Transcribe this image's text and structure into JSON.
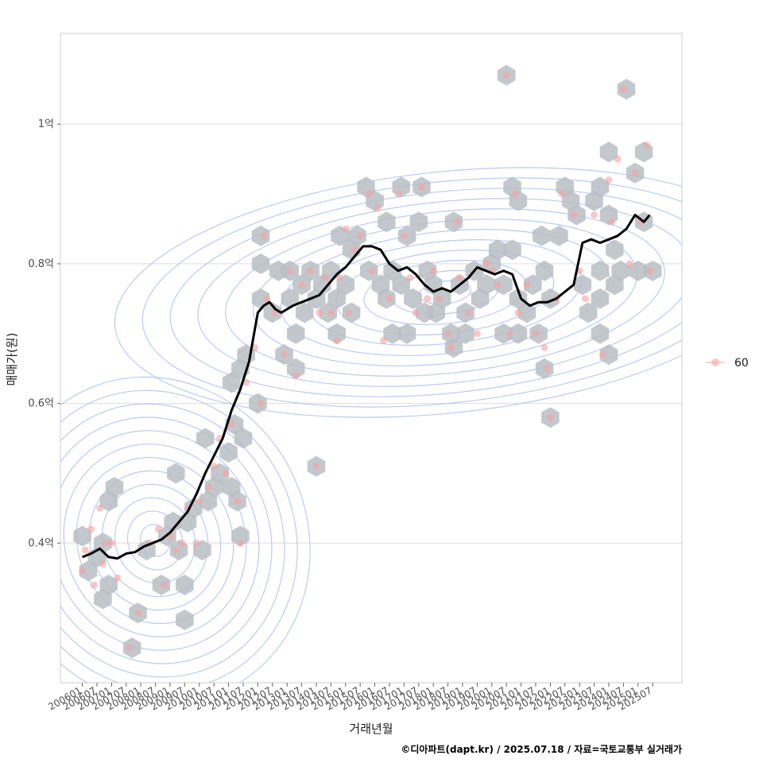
{
  "chart_data": {
    "type": "scatter",
    "title": "",
    "xlabel": "거래년월",
    "ylabel": "매매가(원)",
    "ylim": [
      0.2,
      1.13
    ],
    "yticks": [
      {
        "value": 0.4,
        "label": "0.4억"
      },
      {
        "value": 0.6,
        "label": "0.6억"
      },
      {
        "value": 0.8,
        "label": "0.8억"
      },
      {
        "value": 1.0,
        "label": "1억"
      }
    ],
    "xlim": [
      2005.25,
      2026.5
    ],
    "xticks": [
      "200601",
      "200607",
      "200701",
      "200707",
      "200801",
      "200807",
      "200901",
      "200907",
      "201001",
      "201007",
      "201101",
      "201107",
      "201201",
      "201207",
      "201301",
      "201307",
      "201401",
      "201407",
      "201501",
      "201507",
      "201601",
      "201607",
      "201701",
      "201707",
      "201801",
      "201807",
      "201901",
      "201907",
      "202001",
      "202007",
      "202101",
      "202107",
      "202201",
      "202207",
      "202301",
      "202307",
      "202401",
      "202407",
      "202501",
      "202507"
    ],
    "legend": {
      "title": "",
      "entries": [
        {
          "label": "60",
          "color": "#f4a3a3"
        }
      ],
      "position": "right"
    },
    "colors": {
      "hex": "#b9bec4",
      "point": "#f4a3a3",
      "contour": "#aabdf2",
      "trend": "#000000",
      "grid": "#dddddd",
      "frame": "#cccccc"
    },
    "trend_line": {
      "name": "moving average",
      "x": [
        2006.0,
        2006.3,
        2006.6,
        2006.9,
        2007.2,
        2007.5,
        2007.8,
        2008.1,
        2008.4,
        2008.7,
        2009.0,
        2009.3,
        2009.6,
        2009.9,
        2010.2,
        2010.5,
        2010.8,
        2011.1,
        2011.4,
        2011.7,
        2012.0,
        2012.2,
        2012.4,
        2012.6,
        2012.8,
        2013.0,
        2013.2,
        2013.5,
        2013.8,
        2014.1,
        2014.4,
        2014.7,
        2015.0,
        2015.3,
        2015.6,
        2015.9,
        2016.2,
        2016.5,
        2016.8,
        2017.1,
        2017.4,
        2017.7,
        2018.0,
        2018.3,
        2018.6,
        2018.9,
        2019.2,
        2019.5,
        2019.8,
        2020.1,
        2020.4,
        2020.7,
        2021.0,
        2021.3,
        2021.6,
        2021.9,
        2022.2,
        2022.5,
        2022.8,
        2023.1,
        2023.4,
        2023.7,
        2024.0,
        2024.3,
        2024.6,
        2024.9,
        2025.2,
        2025.4
      ],
      "y": [
        0.38,
        0.385,
        0.392,
        0.38,
        0.378,
        0.385,
        0.387,
        0.395,
        0.4,
        0.405,
        0.415,
        0.43,
        0.445,
        0.47,
        0.5,
        0.525,
        0.55,
        0.59,
        0.62,
        0.66,
        0.73,
        0.74,
        0.745,
        0.735,
        0.73,
        0.735,
        0.74,
        0.745,
        0.75,
        0.755,
        0.77,
        0.785,
        0.795,
        0.81,
        0.825,
        0.825,
        0.82,
        0.8,
        0.79,
        0.795,
        0.785,
        0.77,
        0.76,
        0.765,
        0.76,
        0.77,
        0.78,
        0.795,
        0.79,
        0.785,
        0.79,
        0.785,
        0.75,
        0.74,
        0.745,
        0.745,
        0.75,
        0.76,
        0.77,
        0.83,
        0.835,
        0.83,
        0.835,
        0.84,
        0.85,
        0.87,
        0.86,
        0.87
      ]
    },
    "hexbins": [
      {
        "x": 2006.0,
        "y": 0.41
      },
      {
        "x": 2006.2,
        "y": 0.36
      },
      {
        "x": 2006.5,
        "y": 0.38
      },
      {
        "x": 2006.7,
        "y": 0.4
      },
      {
        "x": 2006.9,
        "y": 0.34
      },
      {
        "x": 2006.7,
        "y": 0.32
      },
      {
        "x": 2006.9,
        "y": 0.46
      },
      {
        "x": 2007.1,
        "y": 0.48
      },
      {
        "x": 2007.7,
        "y": 0.25
      },
      {
        "x": 2007.9,
        "y": 0.3
      },
      {
        "x": 2008.2,
        "y": 0.39
      },
      {
        "x": 2008.7,
        "y": 0.34
      },
      {
        "x": 2008.9,
        "y": 0.41
      },
      {
        "x": 2009.1,
        "y": 0.43
      },
      {
        "x": 2009.3,
        "y": 0.39
      },
      {
        "x": 2009.5,
        "y": 0.34
      },
      {
        "x": 2009.6,
        "y": 0.43
      },
      {
        "x": 2009.8,
        "y": 0.45
      },
      {
        "x": 2009.5,
        "y": 0.29
      },
      {
        "x": 2009.2,
        "y": 0.5
      },
      {
        "x": 2010.1,
        "y": 0.39
      },
      {
        "x": 2010.3,
        "y": 0.46
      },
      {
        "x": 2010.5,
        "y": 0.48
      },
      {
        "x": 2010.2,
        "y": 0.55
      },
      {
        "x": 2010.7,
        "y": 0.5
      },
      {
        "x": 2011.0,
        "y": 0.53
      },
      {
        "x": 2011.1,
        "y": 0.48
      },
      {
        "x": 2011.3,
        "y": 0.46
      },
      {
        "x": 2011.4,
        "y": 0.41
      },
      {
        "x": 2011.2,
        "y": 0.57
      },
      {
        "x": 2011.5,
        "y": 0.55
      },
      {
        "x": 2011.1,
        "y": 0.63
      },
      {
        "x": 2011.4,
        "y": 0.65
      },
      {
        "x": 2011.6,
        "y": 0.67
      },
      {
        "x": 2012.0,
        "y": 0.6
      },
      {
        "x": 2012.1,
        "y": 0.75
      },
      {
        "x": 2012.1,
        "y": 0.8
      },
      {
        "x": 2012.1,
        "y": 0.84
      },
      {
        "x": 2012.5,
        "y": 0.73
      },
      {
        "x": 2012.7,
        "y": 0.79
      },
      {
        "x": 2012.9,
        "y": 0.67
      },
      {
        "x": 2013.1,
        "y": 0.75
      },
      {
        "x": 2013.1,
        "y": 0.79
      },
      {
        "x": 2013.3,
        "y": 0.65
      },
      {
        "x": 2013.3,
        "y": 0.7
      },
      {
        "x": 2013.5,
        "y": 0.77
      },
      {
        "x": 2013.6,
        "y": 0.73
      },
      {
        "x": 2013.8,
        "y": 0.79
      },
      {
        "x": 2014.0,
        "y": 0.75
      },
      {
        "x": 2014.2,
        "y": 0.77
      },
      {
        "x": 2014.0,
        "y": 0.51
      },
      {
        "x": 2014.5,
        "y": 0.79
      },
      {
        "x": 2014.4,
        "y": 0.73
      },
      {
        "x": 2014.7,
        "y": 0.75
      },
      {
        "x": 2014.7,
        "y": 0.7
      },
      {
        "x": 2014.8,
        "y": 0.84
      },
      {
        "x": 2015.0,
        "y": 0.77
      },
      {
        "x": 2015.2,
        "y": 0.73
      },
      {
        "x": 2015.2,
        "y": 0.82
      },
      {
        "x": 2015.4,
        "y": 0.84
      },
      {
        "x": 2015.7,
        "y": 0.91
      },
      {
        "x": 2015.8,
        "y": 0.79
      },
      {
        "x": 2016.0,
        "y": 0.89
      },
      {
        "x": 2016.2,
        "y": 0.77
      },
      {
        "x": 2016.4,
        "y": 0.86
      },
      {
        "x": 2016.4,
        "y": 0.75
      },
      {
        "x": 2016.6,
        "y": 0.79
      },
      {
        "x": 2016.6,
        "y": 0.7
      },
      {
        "x": 2016.9,
        "y": 0.91
      },
      {
        "x": 2016.9,
        "y": 0.77
      },
      {
        "x": 2017.1,
        "y": 0.84
      },
      {
        "x": 2017.1,
        "y": 0.7
      },
      {
        "x": 2017.3,
        "y": 0.75
      },
      {
        "x": 2017.5,
        "y": 0.86
      },
      {
        "x": 2017.6,
        "y": 0.91
      },
      {
        "x": 2017.7,
        "y": 0.73
      },
      {
        "x": 2017.8,
        "y": 0.79
      },
      {
        "x": 2018.0,
        "y": 0.77
      },
      {
        "x": 2018.1,
        "y": 0.73
      },
      {
        "x": 2018.3,
        "y": 0.75
      },
      {
        "x": 2018.6,
        "y": 0.7
      },
      {
        "x": 2018.7,
        "y": 0.86
      },
      {
        "x": 2018.7,
        "y": 0.68
      },
      {
        "x": 2018.9,
        "y": 0.77
      },
      {
        "x": 2019.1,
        "y": 0.7
      },
      {
        "x": 2019.1,
        "y": 0.73
      },
      {
        "x": 2019.4,
        "y": 0.79
      },
      {
        "x": 2019.6,
        "y": 0.75
      },
      {
        "x": 2019.8,
        "y": 0.77
      },
      {
        "x": 2020.0,
        "y": 0.8
      },
      {
        "x": 2020.2,
        "y": 0.82
      },
      {
        "x": 2020.4,
        "y": 0.77
      },
      {
        "x": 2020.4,
        "y": 0.7
      },
      {
        "x": 2020.5,
        "y": 1.07
      },
      {
        "x": 2020.7,
        "y": 0.91
      },
      {
        "x": 2020.9,
        "y": 0.89
      },
      {
        "x": 2020.9,
        "y": 0.75
      },
      {
        "x": 2020.9,
        "y": 0.7
      },
      {
        "x": 2020.7,
        "y": 0.82
      },
      {
        "x": 2021.2,
        "y": 0.73
      },
      {
        "x": 2021.4,
        "y": 0.77
      },
      {
        "x": 2021.6,
        "y": 0.7
      },
      {
        "x": 2021.7,
        "y": 0.84
      },
      {
        "x": 2021.8,
        "y": 0.79
      },
      {
        "x": 2021.8,
        "y": 0.65
      },
      {
        "x": 2022.0,
        "y": 0.58
      },
      {
        "x": 2022.0,
        "y": 0.75
      },
      {
        "x": 2022.3,
        "y": 0.84
      },
      {
        "x": 2022.5,
        "y": 0.91
      },
      {
        "x": 2022.7,
        "y": 0.89
      },
      {
        "x": 2022.9,
        "y": 0.87
      },
      {
        "x": 2023.1,
        "y": 0.77
      },
      {
        "x": 2023.3,
        "y": 0.73
      },
      {
        "x": 2023.5,
        "y": 0.89
      },
      {
        "x": 2023.7,
        "y": 0.91
      },
      {
        "x": 2023.7,
        "y": 0.79
      },
      {
        "x": 2023.7,
        "y": 0.75
      },
      {
        "x": 2023.7,
        "y": 0.7
      },
      {
        "x": 2024.0,
        "y": 0.67
      },
      {
        "x": 2024.0,
        "y": 0.87
      },
      {
        "x": 2024.0,
        "y": 0.96
      },
      {
        "x": 2024.2,
        "y": 0.77
      },
      {
        "x": 2024.2,
        "y": 0.82
      },
      {
        "x": 2024.4,
        "y": 0.79
      },
      {
        "x": 2024.6,
        "y": 1.05
      },
      {
        "x": 2024.9,
        "y": 0.93
      },
      {
        "x": 2025.0,
        "y": 0.79
      },
      {
        "x": 2025.2,
        "y": 0.86
      },
      {
        "x": 2025.2,
        "y": 0.96
      },
      {
        "x": 2025.5,
        "y": 0.79
      }
    ],
    "points": [
      {
        "x": 2006.0,
        "y": 0.36
      },
      {
        "x": 2006.1,
        "y": 0.39
      },
      {
        "x": 2006.3,
        "y": 0.42
      },
      {
        "x": 2006.4,
        "y": 0.34
      },
      {
        "x": 2006.6,
        "y": 0.45
      },
      {
        "x": 2006.7,
        "y": 0.37
      },
      {
        "x": 2006.8,
        "y": 0.4
      },
      {
        "x": 2007.0,
        "y": 0.4
      },
      {
        "x": 2007.2,
        "y": 0.35
      },
      {
        "x": 2007.6,
        "y": 0.25
      },
      {
        "x": 2007.9,
        "y": 0.3
      },
      {
        "x": 2008.3,
        "y": 0.4
      },
      {
        "x": 2008.6,
        "y": 0.42
      },
      {
        "x": 2008.8,
        "y": 0.34
      },
      {
        "x": 2009.0,
        "y": 0.41
      },
      {
        "x": 2009.2,
        "y": 0.39
      },
      {
        "x": 2009.4,
        "y": 0.4
      },
      {
        "x": 2009.6,
        "y": 0.45
      },
      {
        "x": 2009.9,
        "y": 0.4
      },
      {
        "x": 2010.0,
        "y": 0.46
      },
      {
        "x": 2010.3,
        "y": 0.48
      },
      {
        "x": 2010.5,
        "y": 0.51
      },
      {
        "x": 2010.7,
        "y": 0.55
      },
      {
        "x": 2010.9,
        "y": 0.5
      },
      {
        "x": 2011.1,
        "y": 0.57
      },
      {
        "x": 2011.3,
        "y": 0.46
      },
      {
        "x": 2011.4,
        "y": 0.4
      },
      {
        "x": 2011.6,
        "y": 0.63
      },
      {
        "x": 2011.9,
        "y": 0.68
      },
      {
        "x": 2012.1,
        "y": 0.6
      },
      {
        "x": 2012.3,
        "y": 0.75
      },
      {
        "x": 2012.2,
        "y": 0.84
      },
      {
        "x": 2012.6,
        "y": 0.73
      },
      {
        "x": 2012.9,
        "y": 0.67
      },
      {
        "x": 2013.1,
        "y": 0.79
      },
      {
        "x": 2013.3,
        "y": 0.64
      },
      {
        "x": 2013.5,
        "y": 0.77
      },
      {
        "x": 2013.8,
        "y": 0.79
      },
      {
        "x": 2014.0,
        "y": 0.51
      },
      {
        "x": 2014.1,
        "y": 0.73
      },
      {
        "x": 2014.3,
        "y": 0.78
      },
      {
        "x": 2014.5,
        "y": 0.73
      },
      {
        "x": 2014.7,
        "y": 0.69
      },
      {
        "x": 2014.8,
        "y": 0.78
      },
      {
        "x": 2015.0,
        "y": 0.85
      },
      {
        "x": 2015.1,
        "y": 0.73
      },
      {
        "x": 2015.3,
        "y": 0.82
      },
      {
        "x": 2015.5,
        "y": 0.84
      },
      {
        "x": 2015.8,
        "y": 0.9
      },
      {
        "x": 2015.9,
        "y": 0.79
      },
      {
        "x": 2016.1,
        "y": 0.88
      },
      {
        "x": 2016.3,
        "y": 0.69
      },
      {
        "x": 2016.5,
        "y": 0.75
      },
      {
        "x": 2016.8,
        "y": 0.9
      },
      {
        "x": 2017.0,
        "y": 0.84
      },
      {
        "x": 2017.2,
        "y": 0.78
      },
      {
        "x": 2017.4,
        "y": 0.73
      },
      {
        "x": 2017.6,
        "y": 0.91
      },
      {
        "x": 2017.8,
        "y": 0.75
      },
      {
        "x": 2018.0,
        "y": 0.79
      },
      {
        "x": 2018.2,
        "y": 0.75
      },
      {
        "x": 2018.5,
        "y": 0.7
      },
      {
        "x": 2018.6,
        "y": 0.68
      },
      {
        "x": 2018.8,
        "y": 0.86
      },
      {
        "x": 2018.9,
        "y": 0.78
      },
      {
        "x": 2019.2,
        "y": 0.73
      },
      {
        "x": 2019.5,
        "y": 0.7
      },
      {
        "x": 2019.8,
        "y": 0.8
      },
      {
        "x": 2020.0,
        "y": 0.79
      },
      {
        "x": 2020.2,
        "y": 0.77
      },
      {
        "x": 2020.5,
        "y": 1.07
      },
      {
        "x": 2020.6,
        "y": 0.7
      },
      {
        "x": 2020.8,
        "y": 0.9
      },
      {
        "x": 2020.9,
        "y": 0.73
      },
      {
        "x": 2021.2,
        "y": 0.77
      },
      {
        "x": 2021.5,
        "y": 0.7
      },
      {
        "x": 2021.8,
        "y": 0.68
      },
      {
        "x": 2021.9,
        "y": 0.65
      },
      {
        "x": 2022.0,
        "y": 0.58
      },
      {
        "x": 2022.2,
        "y": 0.75
      },
      {
        "x": 2022.4,
        "y": 0.9
      },
      {
        "x": 2022.8,
        "y": 0.87
      },
      {
        "x": 2023.0,
        "y": 0.79
      },
      {
        "x": 2023.2,
        "y": 0.75
      },
      {
        "x": 2023.5,
        "y": 0.87
      },
      {
        "x": 2023.8,
        "y": 0.67
      },
      {
        "x": 2024.0,
        "y": 0.92
      },
      {
        "x": 2024.1,
        "y": 0.86
      },
      {
        "x": 2024.3,
        "y": 0.95
      },
      {
        "x": 2024.5,
        "y": 1.05
      },
      {
        "x": 2024.7,
        "y": 0.8
      },
      {
        "x": 2024.9,
        "y": 0.93
      },
      {
        "x": 2025.1,
        "y": 0.86
      },
      {
        "x": 2025.3,
        "y": 0.97
      },
      {
        "x": 2025.4,
        "y": 0.79
      }
    ]
  },
  "caption": "©디아파트(dapt.kr) / 2025.07.18 / 자료=국토교통부 실거래가"
}
